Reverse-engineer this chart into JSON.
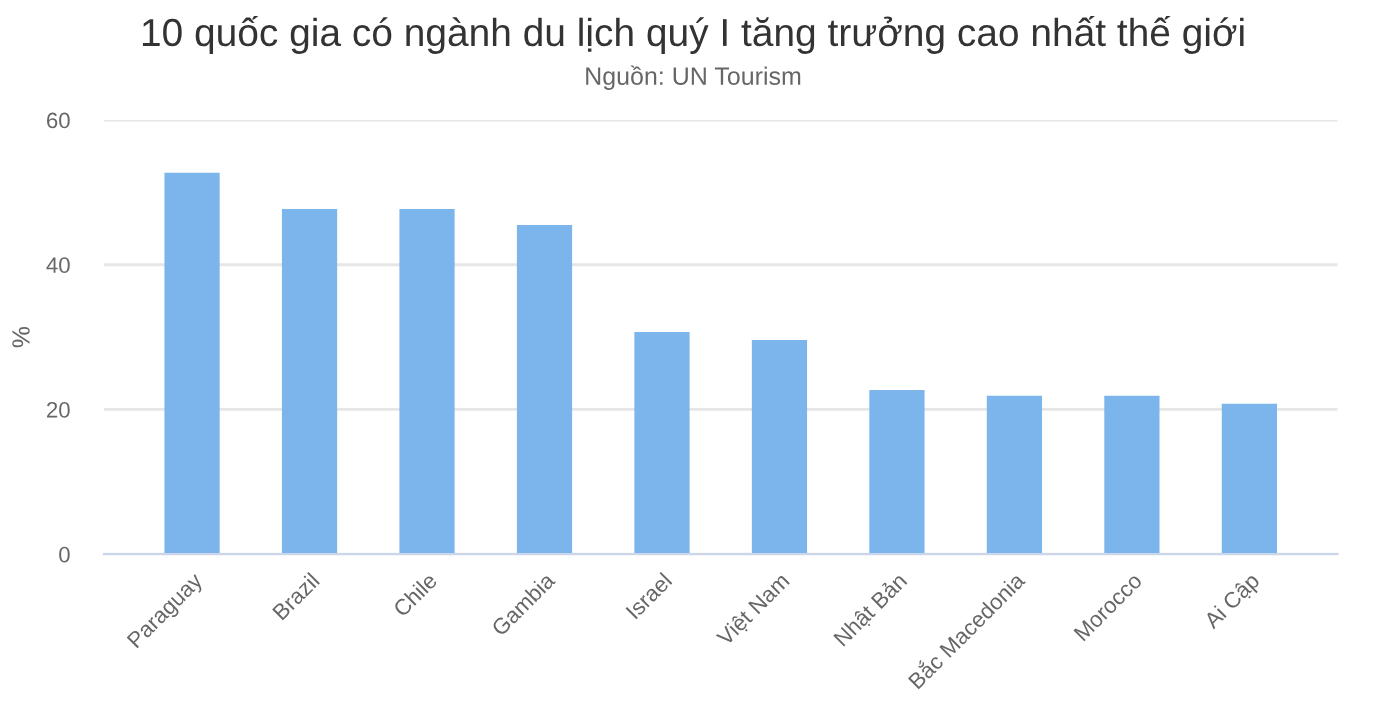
{
  "chart_data": {
    "type": "bar",
    "title": "10 quốc gia có ngành du lịch quý I tăng trưởng cao nhất thế giới",
    "subtitle": "Nguồn: UN Tourism",
    "ylabel": "%",
    "categories": [
      "Paraguay",
      "Brazil",
      "Chile",
      "Gambia",
      "Israel",
      "Việt Nam",
      "Nhật Bản",
      "Bắc Macedonia",
      "Morocco",
      "Ai Cập"
    ],
    "values": [
      52.7,
      47.7,
      47.7,
      45.5,
      30.7,
      29.6,
      22.7,
      21.9,
      21.9,
      20.8
    ],
    "color": "#7cb5ec",
    "ylim": [
      0,
      60
    ],
    "yticks": [
      0,
      20,
      40,
      60
    ],
    "grid": "y"
  }
}
